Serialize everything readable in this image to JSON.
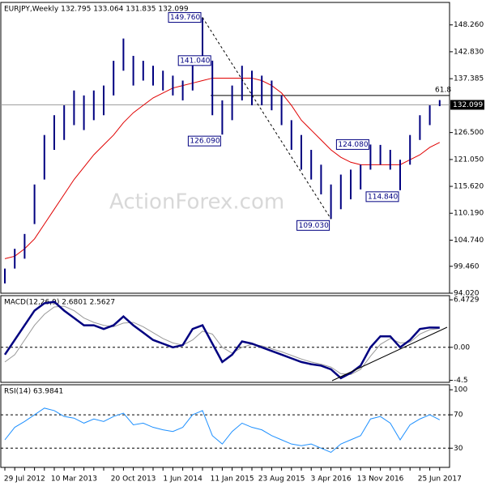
{
  "chart_data": [
    {
      "type": "ohlc",
      "title": "EURJPY,Weekly  132.795 133.064 131.835 132.099",
      "watermark": "ActionForex.com",
      "categories": [
        null,
        null,
        "29 Jul 2012",
        null,
        null,
        null,
        null,
        "10 Mar 2013",
        null,
        null,
        null,
        null,
        null,
        "20 Oct 2013",
        null,
        null,
        null,
        null,
        "1 Jun 2014",
        null,
        null,
        null,
        null,
        "11 Jan 2015",
        null,
        null,
        null,
        null,
        "23 Aug 2015",
        null,
        null,
        null,
        null,
        "3 Apr 2016",
        null,
        null,
        null,
        null,
        "13 Nov 2016",
        null,
        null,
        null,
        null,
        null,
        "25 Jun 2017"
      ],
      "high": [
        99,
        103,
        106,
        116,
        126,
        130,
        132,
        135,
        134,
        135,
        136,
        141,
        145.5,
        142,
        141,
        140,
        139,
        138,
        137,
        141,
        149.76,
        141.04,
        133,
        136,
        140,
        139,
        138,
        137,
        134,
        129,
        126,
        123,
        120,
        116,
        118,
        119,
        120,
        124.08,
        124,
        123,
        121,
        126,
        130,
        132,
        133.064
      ],
      "low": [
        96,
        99,
        101,
        108,
        117,
        123,
        125,
        128,
        127,
        129,
        130,
        134,
        139,
        136,
        137,
        136,
        135,
        134,
        133,
        135,
        140,
        130,
        126.09,
        129,
        133,
        132,
        132,
        131,
        128,
        123,
        119,
        117,
        114,
        109.03,
        111,
        113,
        115,
        119,
        120,
        119,
        114.84,
        120,
        125,
        128,
        131.835
      ],
      "color": "#000080",
      "ma": {
        "color": "#e00000",
        "values": [
          101,
          101.5,
          103,
          105,
          108,
          111,
          114,
          117,
          119.5,
          122,
          124,
          126,
          128.5,
          130.5,
          132,
          133.5,
          134.5,
          135.5,
          136,
          136.5,
          137,
          137.5,
          137.5,
          137.5,
          137.5,
          137.5,
          137,
          136,
          134.5,
          132,
          129,
          127,
          125,
          123,
          121.5,
          120.5,
          120,
          120,
          120,
          120,
          120,
          121,
          122,
          123.5,
          124.5
        ]
      },
      "annotations": [
        {
          "value": 149.76,
          "label": "149.760"
        },
        {
          "value": 141.04,
          "label": "141.040"
        },
        {
          "value": 126.09,
          "label": "126.090"
        },
        {
          "value": 124.08,
          "label": "124.080"
        },
        {
          "value": 114.84,
          "label": "114.840"
        },
        {
          "value": 109.03,
          "label": "109.030"
        }
      ],
      "fib": {
        "value": 134.0,
        "label": "61.8"
      },
      "last": {
        "value": 132.099,
        "label": "132.099"
      },
      "ylim": [
        94.02,
        152.8
      ],
      "yticks": [
        {
          "value": 148.26,
          "label": "148.260"
        },
        {
          "value": 142.83,
          "label": "142.830"
        },
        {
          "value": 137.385,
          "label": "137.385"
        },
        {
          "value": 126.5,
          "label": "126.500"
        },
        {
          "value": 121.05,
          "label": "121.050"
        },
        {
          "value": 115.62,
          "label": "115.620"
        },
        {
          "value": 110.19,
          "label": "110.190"
        },
        {
          "value": 104.74,
          "label": "104.740"
        },
        {
          "value": 99.46,
          "label": "99.460"
        },
        {
          "value": 94.02,
          "label": "94.020"
        }
      ]
    },
    {
      "type": "line",
      "title": "MACD(12,26,9) 2.6801 2.5627",
      "series": [
        {
          "color": "#000080",
          "values": [
            -1,
            1,
            3,
            5,
            6,
            6.2,
            5,
            4,
            3,
            3,
            2.5,
            3,
            4.2,
            3,
            2,
            1,
            0.5,
            0,
            0.3,
            2.5,
            3,
            0.5,
            -2,
            -1,
            0.8,
            0.5,
            0,
            -0.5,
            -1,
            -1.5,
            -2,
            -2.3,
            -2.5,
            -3,
            -4.2,
            -3.5,
            -2.5,
            0,
            1.5,
            1.5,
            0,
            1,
            2.5,
            2.7,
            2.68
          ]
        },
        {
          "color": "#999999",
          "values": [
            -2,
            -1,
            1,
            3,
            4.5,
            5.5,
            5.6,
            5,
            4,
            3.4,
            3,
            2.8,
            3.3,
            3.4,
            2.8,
            2,
            1.2,
            0.6,
            0.3,
            1,
            2.2,
            1.8,
            0,
            -0.8,
            0,
            0.4,
            0.2,
            -0.2,
            -0.6,
            -1.1,
            -1.6,
            -2,
            -2.3,
            -2.7,
            -3.6,
            -3.7,
            -3,
            -1.2,
            0.4,
            1.2,
            0.6,
            0.7,
            1.8,
            2.4,
            2.56
          ]
        }
      ],
      "ylim": [
        -4.77,
        7.04
      ],
      "yticks": [
        6.4729,
        {
          "value": 0,
          "label": "0.00"
        },
        -4.5
      ]
    },
    {
      "type": "line",
      "title": "RSI(14) 63.9841",
      "series": [
        {
          "color": "#1e90ff",
          "values": [
            40,
            55,
            62,
            70,
            78,
            75,
            68,
            66,
            60,
            65,
            62,
            68,
            72,
            58,
            60,
            55,
            52,
            50,
            55,
            70,
            75,
            45,
            35,
            50,
            60,
            55,
            52,
            45,
            40,
            35,
            33,
            35,
            30,
            25,
            35,
            40,
            45,
            65,
            68,
            60,
            40,
            58,
            65,
            70,
            64
          ]
        }
      ],
      "ylim": [
        7,
        106
      ],
      "yticks": [
        100,
        70,
        30
      ]
    }
  ]
}
